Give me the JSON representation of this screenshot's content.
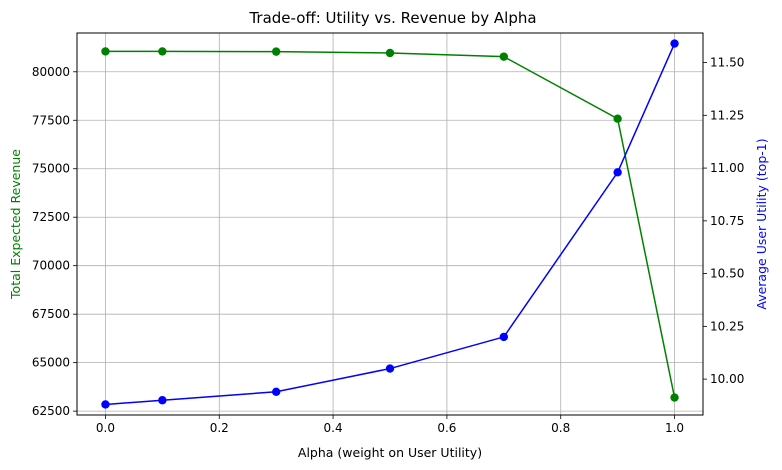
{
  "chart_data": {
    "type": "line",
    "title": "Trade-off: Utility vs. Revenue by Alpha",
    "xlabel": "Alpha (weight on User Utility)",
    "ylabel_left": "Total Expected Revenue",
    "ylabel_right": "Average User Utility (top-1)",
    "x": [
      0.0,
      0.1,
      0.3,
      0.5,
      0.7,
      0.9,
      1.0
    ],
    "xlim": [
      -0.05,
      1.05
    ],
    "x_ticks": [
      "0.0",
      "0.2",
      "0.4",
      "0.6",
      "0.8",
      "1.0"
    ],
    "x_tick_values": [
      0.0,
      0.2,
      0.4,
      0.6,
      0.8,
      1.0
    ],
    "left_axis": {
      "ylim": [
        62300,
        82000
      ],
      "ticks": [
        "62500",
        "65000",
        "67500",
        "70000",
        "72500",
        "75000",
        "77500",
        "80000"
      ],
      "tick_values": [
        62500,
        65000,
        67500,
        70000,
        72500,
        75000,
        77500,
        80000
      ],
      "color": "#008000"
    },
    "right_axis": {
      "ylim": [
        9.83,
        11.64
      ],
      "ticks": [
        "10.00",
        "10.25",
        "10.50",
        "10.75",
        "11.00",
        "11.25",
        "11.50"
      ],
      "tick_values": [
        10.0,
        10.25,
        10.5,
        10.75,
        11.0,
        11.25,
        11.5
      ],
      "color": "#0000ff"
    },
    "series": [
      {
        "axis": "left",
        "color": "#008000",
        "values": [
          81050,
          81050,
          81040,
          80970,
          80780,
          77580,
          63200
        ]
      },
      {
        "axis": "right",
        "color": "#0000ff",
        "values": [
          9.88,
          9.9,
          9.94,
          10.05,
          10.2,
          10.98,
          11.59
        ]
      }
    ],
    "grid": true
  }
}
